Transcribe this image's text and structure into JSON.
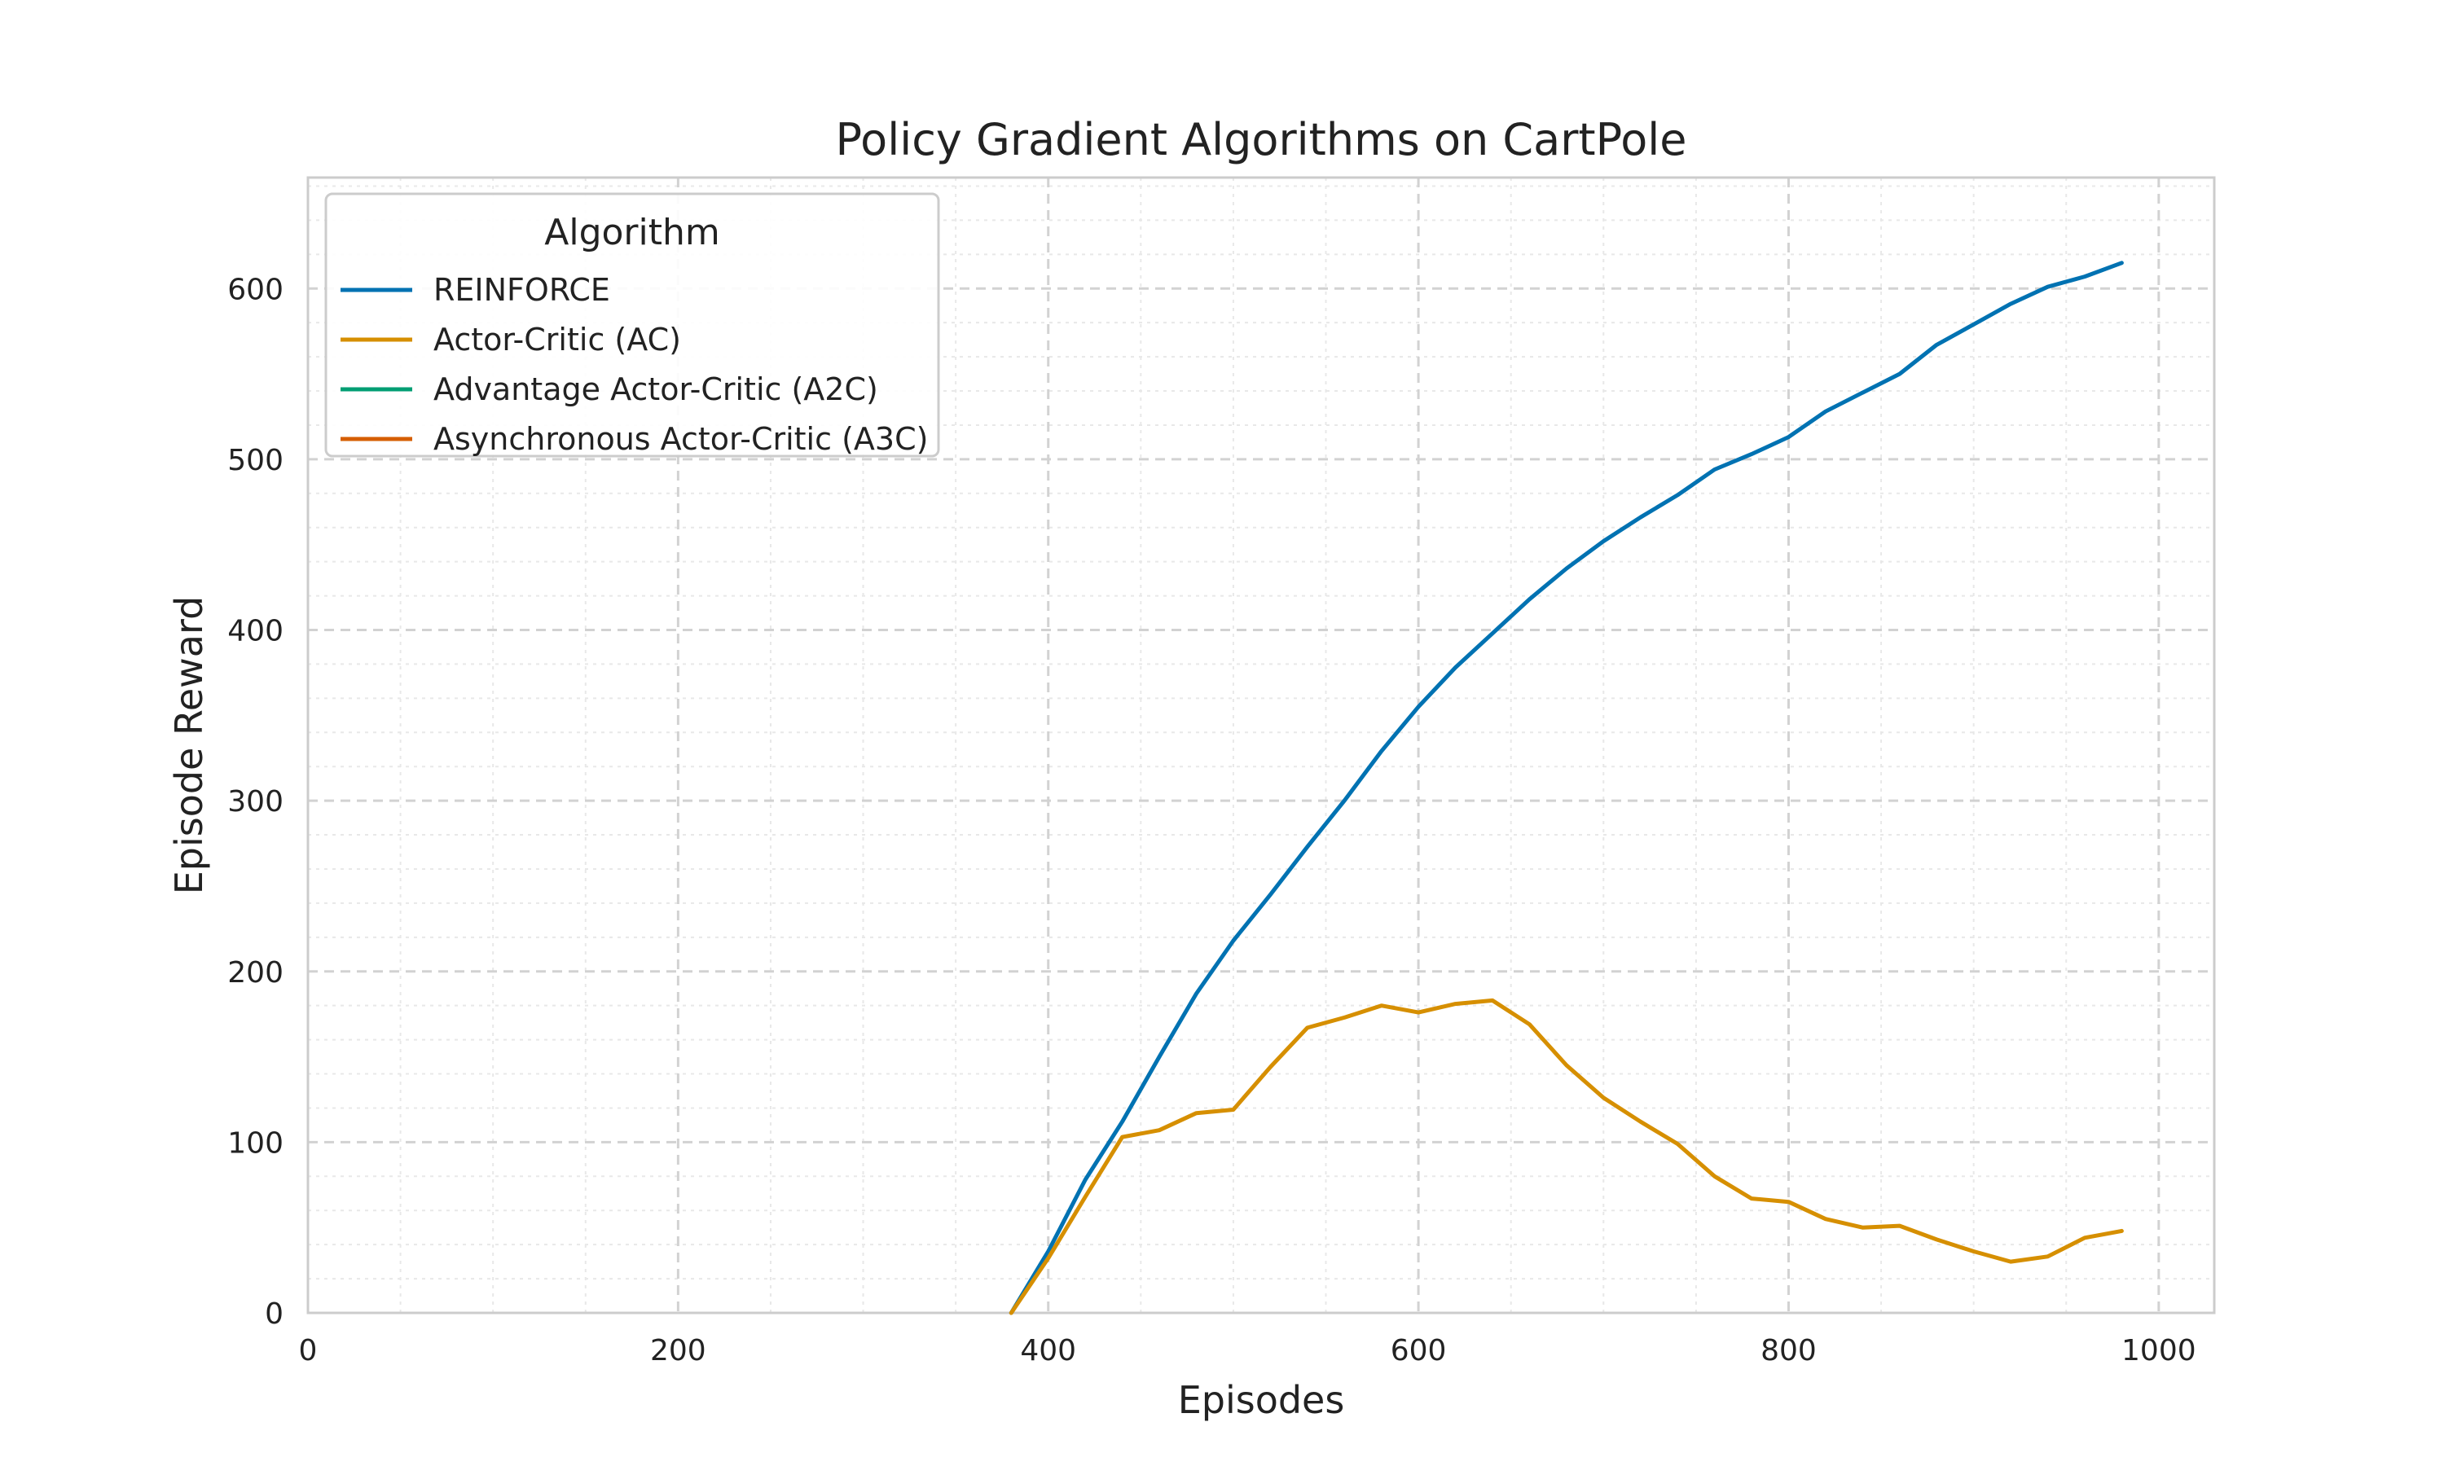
{
  "chart_data": {
    "type": "line",
    "title": "Policy Gradient Algorithms on CartPole",
    "xlabel": "Episodes",
    "ylabel": "Episode Reward",
    "xlim": [
      0,
      1030
    ],
    "ylim": [
      0,
      665
    ],
    "xticks": [
      0,
      200,
      400,
      600,
      800,
      1000
    ],
    "yticks": [
      0,
      100,
      200,
      300,
      400,
      500,
      600
    ],
    "grid": true,
    "legend": {
      "title": "Algorithm",
      "position": "top-left"
    },
    "series": [
      {
        "name": "REINFORCE",
        "color": "#0072b2",
        "x": [
          380,
          400,
          420,
          440,
          460,
          480,
          500,
          520,
          540,
          560,
          580,
          600,
          620,
          640,
          660,
          680,
          700,
          720,
          740,
          760,
          780,
          800,
          820,
          840,
          860,
          880,
          900,
          920,
          940,
          960,
          980
        ],
        "y": [
          0,
          36,
          78,
          112,
          150,
          187,
          218,
          245,
          273,
          300,
          329,
          355,
          378,
          398,
          418,
          436,
          452,
          466,
          479,
          494,
          503,
          513,
          528,
          539,
          550,
          567,
          579,
          591,
          601,
          607,
          615
        ]
      },
      {
        "name": "Actor-Critic (AC)",
        "color": "#d68f00",
        "x": [
          380,
          400,
          420,
          440,
          460,
          480,
          500,
          520,
          540,
          560,
          580,
          600,
          620,
          640,
          660,
          680,
          700,
          720,
          740,
          760,
          780,
          800,
          820,
          840,
          860,
          880,
          900,
          920,
          940,
          960,
          980
        ],
        "y": [
          0,
          32,
          68,
          103,
          107,
          117,
          119,
          144,
          167,
          173,
          180,
          176,
          181,
          183,
          169,
          145,
          126,
          112,
          99,
          80,
          67,
          65,
          55,
          50,
          51,
          43,
          36,
          30,
          33,
          44,
          48
        ]
      },
      {
        "name": "Advantage Actor-Critic (A2C)",
        "color": "#009e73",
        "x": [],
        "y": []
      },
      {
        "name": "Asynchronous Actor-Critic (A3C)",
        "color": "#d55e00",
        "x": [],
        "y": []
      }
    ]
  }
}
